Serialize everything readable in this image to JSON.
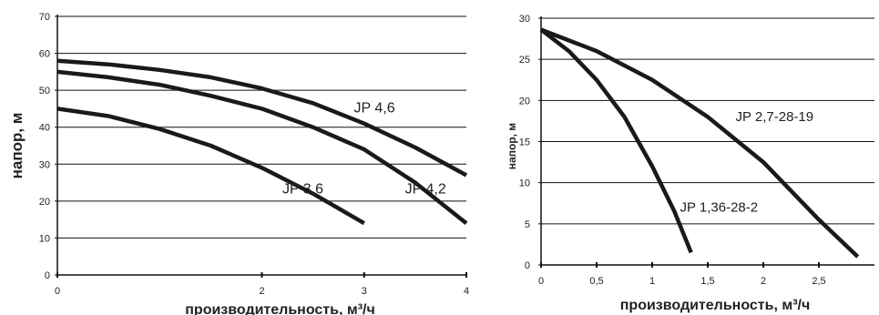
{
  "chart_data": [
    {
      "type": "line",
      "xlabel": "производительность, м³/ч",
      "ylabel": "напор, м",
      "xlim": [
        0,
        4
      ],
      "ylim": [
        0,
        70
      ],
      "x_ticks": [
        0,
        2,
        3,
        4
      ],
      "y_ticks": [
        0,
        10,
        20,
        30,
        40,
        50,
        60,
        70
      ],
      "grid": "horizontal",
      "series": [
        {
          "name": "JP 4,6",
          "x": [
            0,
            0.5,
            1,
            1.5,
            2,
            2.5,
            3,
            3.5,
            4
          ],
          "y": [
            58,
            57,
            55.5,
            53.5,
            50.5,
            46.5,
            41,
            34.5,
            27
          ]
        },
        {
          "name": "JP 4,2",
          "x": [
            0,
            0.5,
            1,
            1.5,
            2,
            2.5,
            3,
            3.5,
            4
          ],
          "y": [
            55,
            53.5,
            51.5,
            48.5,
            45,
            40,
            34,
            25,
            14
          ]
        },
        {
          "name": "JP 3,6",
          "x": [
            0,
            0.5,
            1,
            1.5,
            2,
            2.5,
            3
          ],
          "y": [
            45,
            43,
            39.5,
            35,
            29,
            22,
            14
          ]
        }
      ],
      "labels": [
        {
          "text": "JP 4,6",
          "x": 2.9,
          "y": 44
        },
        {
          "text": "JP 4,2",
          "x": 3.4,
          "y": 22
        },
        {
          "text": "JP 3,6",
          "x": 2.2,
          "y": 22
        }
      ]
    },
    {
      "type": "line",
      "xlabel": "производительность, м³/ч",
      "ylabel": "напор, м",
      "xlim": [
        0,
        3
      ],
      "ylim": [
        0,
        30
      ],
      "x_ticks": [
        "0",
        "0,5",
        "1",
        "1,5",
        "2",
        "2,5"
      ],
      "x_tick_values": [
        0,
        0.5,
        1,
        1.5,
        2,
        2.5
      ],
      "y_ticks": [
        0,
        5,
        10,
        15,
        20,
        25,
        30
      ],
      "grid": "horizontal",
      "series": [
        {
          "name": "JP 2,7-28-19",
          "x": [
            0,
            0.5,
            1,
            1.5,
            2,
            2.5,
            2.85
          ],
          "y": [
            28.6,
            26,
            22.5,
            18,
            12.5,
            5.5,
            1
          ]
        },
        {
          "name": "JP 1,36-28-2",
          "x": [
            0,
            0.25,
            0.5,
            0.75,
            1,
            1.2,
            1.35
          ],
          "y": [
            28.6,
            26,
            22.5,
            18,
            12,
            6.5,
            1.5
          ]
        }
      ],
      "labels": [
        {
          "text": "JP 2,7-28-19",
          "x": 1.75,
          "y": 17.5
        },
        {
          "text": "JP 1,36-28-2",
          "x": 1.25,
          "y": 6.5
        }
      ]
    }
  ]
}
